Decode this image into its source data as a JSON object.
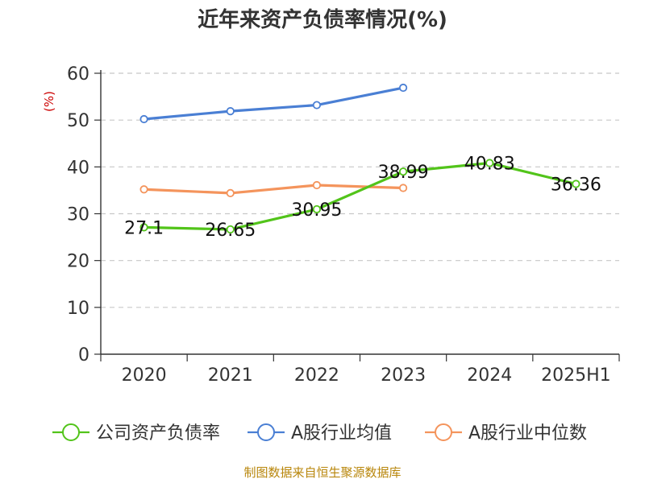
{
  "chart_data": {
    "type": "line",
    "title": "近年来资产负债率情况(%)",
    "ylabel": "(%)",
    "xlabel": "",
    "ylim": [
      0,
      60
    ],
    "yticks": [
      0,
      10,
      20,
      30,
      40,
      50,
      60
    ],
    "categories": [
      "2020",
      "2021",
      "2022",
      "2023",
      "2024",
      "2025H1"
    ],
    "grid": "horizontal-dashed",
    "legend_position": "bottom",
    "series": [
      {
        "name": "公司资产负债率",
        "color": "#52c41a",
        "values": [
          27.1,
          26.65,
          30.95,
          38.99,
          40.83,
          36.36
        ],
        "labels": [
          "27.1",
          "26.65",
          "30.95",
          "38.99",
          "40.83",
          "36.36"
        ]
      },
      {
        "name": "A股行业均值",
        "color": "#4a7fd4",
        "values": [
          50.2,
          51.9,
          53.2,
          56.9,
          null,
          null
        ]
      },
      {
        "name": "A股行业中位数",
        "color": "#f4945c",
        "values": [
          35.2,
          34.4,
          36.1,
          35.5,
          null,
          null
        ]
      }
    ],
    "source": "制图数据来自恒生聚源数据库"
  }
}
